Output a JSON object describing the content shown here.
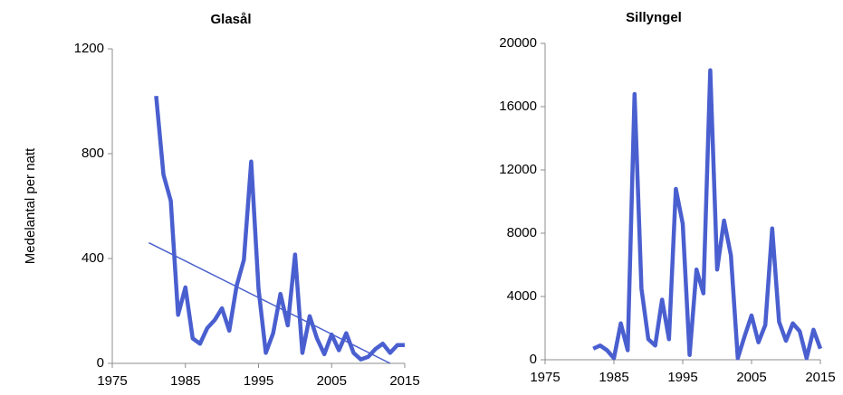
{
  "chart_data": [
    {
      "type": "line",
      "title": "Glasål",
      "y_label": "Medelantal per natt",
      "color": "#4a5fcf",
      "x": [
        1981,
        1982,
        1983,
        1984,
        1985,
        1986,
        1987,
        1988,
        1989,
        1990,
        1991,
        1992,
        1993,
        1994,
        1995,
        1996,
        1997,
        1998,
        1999,
        2000,
        2001,
        2002,
        2003,
        2004,
        2005,
        2006,
        2007,
        2008,
        2009,
        2010,
        2011,
        2012,
        2013,
        2014,
        2015
      ],
      "values": [
        1020,
        720,
        620,
        185,
        290,
        95,
        75,
        135,
        165,
        210,
        125,
        295,
        395,
        770,
        285,
        40,
        115,
        265,
        145,
        415,
        40,
        180,
        95,
        35,
        110,
        50,
        115,
        40,
        15,
        25,
        55,
        75,
        40,
        70,
        70
      ],
      "trendline": {
        "x": [
          1980,
          2013
        ],
        "values": [
          460,
          0
        ]
      },
      "xlim": [
        1975,
        2015
      ],
      "xticks": [
        1975,
        1985,
        1995,
        2005,
        2015
      ],
      "ylim": [
        0,
        1200
      ],
      "yticks": [
        0,
        400,
        800,
        1200
      ]
    },
    {
      "type": "line",
      "title": "Sillyngel",
      "color": "#4a5fcf",
      "x": [
        1982,
        1983,
        1984,
        1985,
        1986,
        1987,
        1988,
        1989,
        1990,
        1991,
        1992,
        1993,
        1994,
        1995,
        1996,
        1997,
        1998,
        1999,
        2000,
        2001,
        2002,
        2003,
        2004,
        2005,
        2006,
        2007,
        2008,
        2009,
        2010,
        2011,
        2012,
        2013,
        2014,
        2015
      ],
      "values": [
        700,
        900,
        600,
        100,
        2300,
        600,
        16800,
        4500,
        1300,
        900,
        3800,
        1300,
        10800,
        8600,
        300,
        5700,
        4200,
        18300,
        5700,
        8800,
        6600,
        100,
        1500,
        2800,
        1100,
        2200,
        8300,
        2400,
        1200,
        2300,
        1800,
        100,
        1900,
        700
      ],
      "xlim": [
        1975,
        2015
      ],
      "xticks": [
        1975,
        1985,
        1995,
        2005,
        2015
      ],
      "ylim": [
        0,
        20000
      ],
      "yticks": [
        0,
        4000,
        8000,
        12000,
        16000,
        20000
      ]
    }
  ]
}
